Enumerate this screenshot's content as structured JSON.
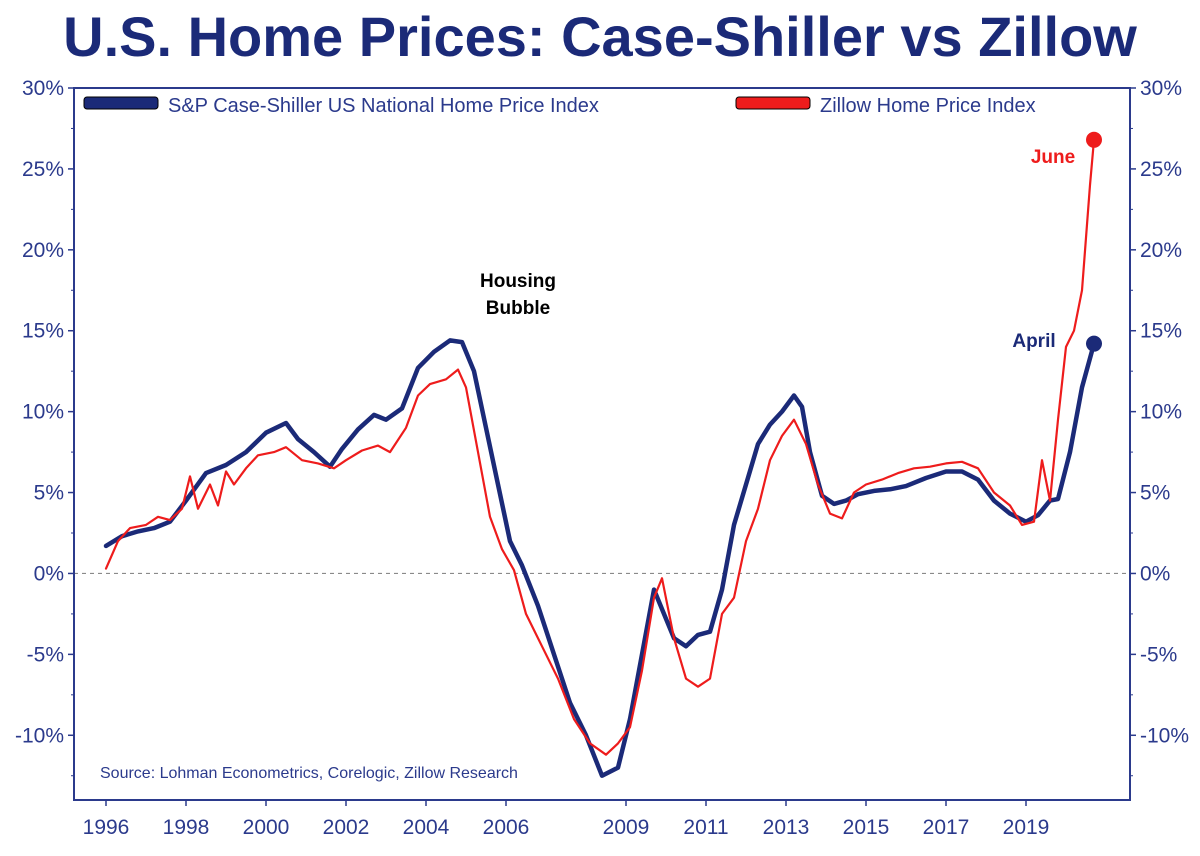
{
  "chart_data": {
    "type": "line",
    "title": "U.S. Home Prices: Case-Shiller vs Zillow",
    "xlabel": "",
    "ylabel": "",
    "xlim": [
      1996,
      2021
    ],
    "ylim": [
      -14,
      30
    ],
    "y_ticks": [
      30,
      25,
      20,
      15,
      10,
      5,
      0,
      -5,
      -10
    ],
    "y_tick_labels": [
      "30%",
      "25%",
      "20%",
      "15%",
      "10%",
      "5%",
      "0%",
      "-5%",
      "-10%"
    ],
    "x_ticks": [
      1996,
      1998,
      2000,
      2002,
      2004,
      2006,
      2009,
      2011,
      2013,
      2015,
      2017,
      2019
    ],
    "x_tick_labels": [
      "1996",
      "1998",
      "2000",
      "2002",
      "2004",
      "2006",
      "2009",
      "2011",
      "2013",
      "2015",
      "2017",
      "2019"
    ],
    "zero_line": true,
    "legend_position": "top",
    "source": "Source: Lohman Econometrics, Corelogic, Zillow Research",
    "series": [
      {
        "name": "S&P Case-Shiller US National Home Price Index",
        "color": "#1b2a78",
        "x": [
          1996.0,
          1996.4,
          1996.8,
          1997.2,
          1997.6,
          1998.0,
          1998.5,
          1999.0,
          1999.5,
          2000.0,
          2000.5,
          2000.8,
          2001.2,
          2001.6,
          2001.9,
          2002.3,
          2002.7,
          2003.0,
          2003.4,
          2003.8,
          2004.2,
          2004.6,
          2004.9,
          2005.2,
          2005.5,
          2005.8,
          2006.1,
          2006.4,
          2006.8,
          2007.2,
          2007.6,
          2008.0,
          2008.4,
          2008.8,
          2009.1,
          2009.4,
          2009.7,
          2010.0,
          2010.2,
          2010.5,
          2010.8,
          2011.1,
          2011.4,
          2011.7,
          2012.0,
          2012.3,
          2012.6,
          2012.9,
          2013.2,
          2013.4,
          2013.6,
          2013.9,
          2014.2,
          2014.5,
          2014.8,
          2015.2,
          2015.6,
          2016.0,
          2016.5,
          2017.0,
          2017.4,
          2017.8,
          2018.2,
          2018.6,
          2019.0,
          2019.3,
          2019.6,
          2019.8,
          2020.1,
          2020.4,
          2020.7
        ],
        "y": [
          1.7,
          2.3,
          2.6,
          2.8,
          3.2,
          4.5,
          6.2,
          6.7,
          7.5,
          8.7,
          9.3,
          8.3,
          7.5,
          6.6,
          7.7,
          8.9,
          9.8,
          9.5,
          10.2,
          12.7,
          13.7,
          14.4,
          14.3,
          12.5,
          9.0,
          5.5,
          2.0,
          0.5,
          -2.0,
          -5.0,
          -8.0,
          -10.0,
          -12.5,
          -12.0,
          -9.0,
          -5.0,
          -1.0,
          -2.8,
          -4.0,
          -4.5,
          -3.8,
          -3.6,
          -1.0,
          3.0,
          5.5,
          8.0,
          9.2,
          10.0,
          11.0,
          10.3,
          7.5,
          4.8,
          4.3,
          4.5,
          4.9,
          5.1,
          5.2,
          5.4,
          5.9,
          6.3,
          6.3,
          5.8,
          4.5,
          3.7,
          3.2,
          3.6,
          4.5,
          4.6,
          7.5,
          11.5,
          14.2
        ]
      },
      {
        "name": "Zillow Home Price Index",
        "color": "#ee1c1c",
        "x": [
          1996.0,
          1996.3,
          1996.6,
          1997.0,
          1997.3,
          1997.6,
          1997.9,
          1998.1,
          1998.3,
          1998.6,
          1998.8,
          1999.0,
          1999.2,
          1999.5,
          1999.8,
          2000.2,
          2000.5,
          2000.9,
          2001.3,
          2001.7,
          2002.0,
          2002.4,
          2002.8,
          2003.1,
          2003.5,
          2003.8,
          2004.1,
          2004.5,
          2004.8,
          2005.0,
          2005.3,
          2005.6,
          2005.9,
          2006.2,
          2006.5,
          2006.9,
          2007.3,
          2007.7,
          2008.1,
          2008.5,
          2008.8,
          2009.1,
          2009.4,
          2009.7,
          2009.9,
          2010.2,
          2010.5,
          2010.8,
          2011.1,
          2011.4,
          2011.7,
          2012.0,
          2012.3,
          2012.6,
          2012.9,
          2013.2,
          2013.5,
          2013.8,
          2014.1,
          2014.4,
          2014.7,
          2015.0,
          2015.4,
          2015.8,
          2016.2,
          2016.6,
          2017.0,
          2017.4,
          2017.8,
          2018.2,
          2018.6,
          2018.9,
          2019.2,
          2019.4,
          2019.6,
          2019.8,
          2020.0,
          2020.2,
          2020.4,
          2020.6,
          2020.7
        ],
        "y": [
          0.3,
          2.0,
          2.8,
          3.0,
          3.5,
          3.3,
          4.0,
          6.0,
          4.0,
          5.5,
          4.2,
          6.3,
          5.5,
          6.5,
          7.3,
          7.5,
          7.8,
          7.0,
          6.8,
          6.5,
          7.0,
          7.6,
          7.9,
          7.5,
          9.0,
          11.0,
          11.7,
          12.0,
          12.6,
          11.5,
          7.5,
          3.5,
          1.5,
          0.2,
          -2.5,
          -4.5,
          -6.5,
          -9.0,
          -10.5,
          -11.2,
          -10.5,
          -9.5,
          -6.0,
          -1.5,
          -0.3,
          -4.0,
          -6.5,
          -7.0,
          -6.5,
          -2.5,
          -1.5,
          2.0,
          4.0,
          7.0,
          8.5,
          9.5,
          8.0,
          5.5,
          3.7,
          3.4,
          5.0,
          5.5,
          5.8,
          6.2,
          6.5,
          6.6,
          6.8,
          6.9,
          6.5,
          5.0,
          4.2,
          3.0,
          3.2,
          7.0,
          4.5,
          9.5,
          14.0,
          15.0,
          17.5,
          24.0,
          26.8
        ]
      }
    ],
    "annotations": [
      {
        "text_line1": "Housing",
        "text_line2": "Bubble",
        "x": 2005.0,
        "y": 17.5,
        "color": "#000000"
      },
      {
        "text": "June",
        "x": 2020.3,
        "y": 25.5,
        "color": "#ee1c1c"
      },
      {
        "text": "April",
        "x": 2020.0,
        "y": 14.3,
        "color": "#1b2a78"
      }
    ],
    "end_markers": [
      {
        "series": 1,
        "x": 2020.7,
        "y": 26.8,
        "color": "#ee1c1c"
      },
      {
        "series": 0,
        "x": 2020.7,
        "y": 14.2,
        "color": "#1b2a78"
      }
    ]
  }
}
